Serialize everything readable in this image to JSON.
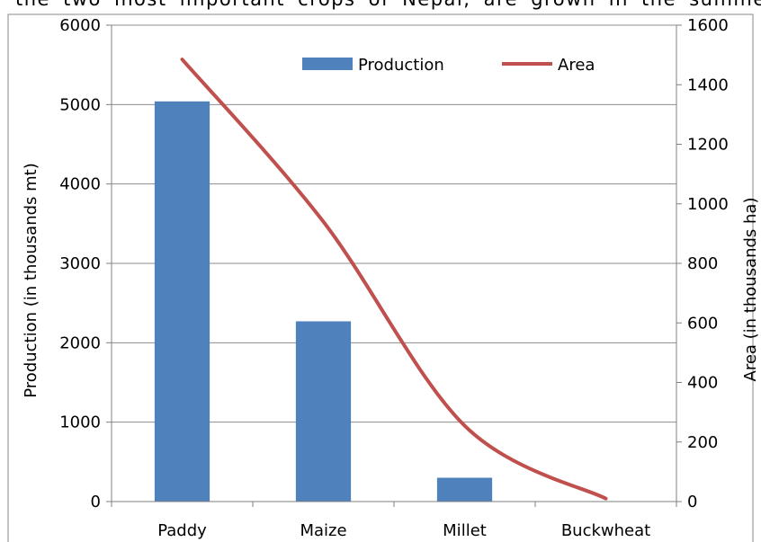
{
  "caption_fragment": "the two most important crops of Nepal, are grown in the summer",
  "chart_data": {
    "type": "bar+line",
    "categories": [
      "Paddy",
      "Maize",
      "Millet",
      "Buckwheat"
    ],
    "series": [
      {
        "name": "Production",
        "kind": "bar",
        "axis": "left",
        "color": "#4F81BD",
        "values": [
          5040,
          2270,
          300,
          0
        ]
      },
      {
        "name": "Area",
        "kind": "line",
        "axis": "right",
        "color": "#C0504D",
        "values": [
          1485,
          940,
          255,
          10
        ]
      }
    ],
    "ylabel": "Production (in  thousands mt)",
    "y2label": "Area (in thousands ha)",
    "ylim": [
      0,
      6000
    ],
    "y2lim": [
      0,
      1600
    ],
    "yticks": [
      0,
      1000,
      2000,
      3000,
      4000,
      5000,
      6000
    ],
    "y2ticks": [
      0,
      200,
      400,
      600,
      800,
      1000,
      1200,
      1400,
      1600
    ],
    "grid": true,
    "legend_position": "top"
  }
}
